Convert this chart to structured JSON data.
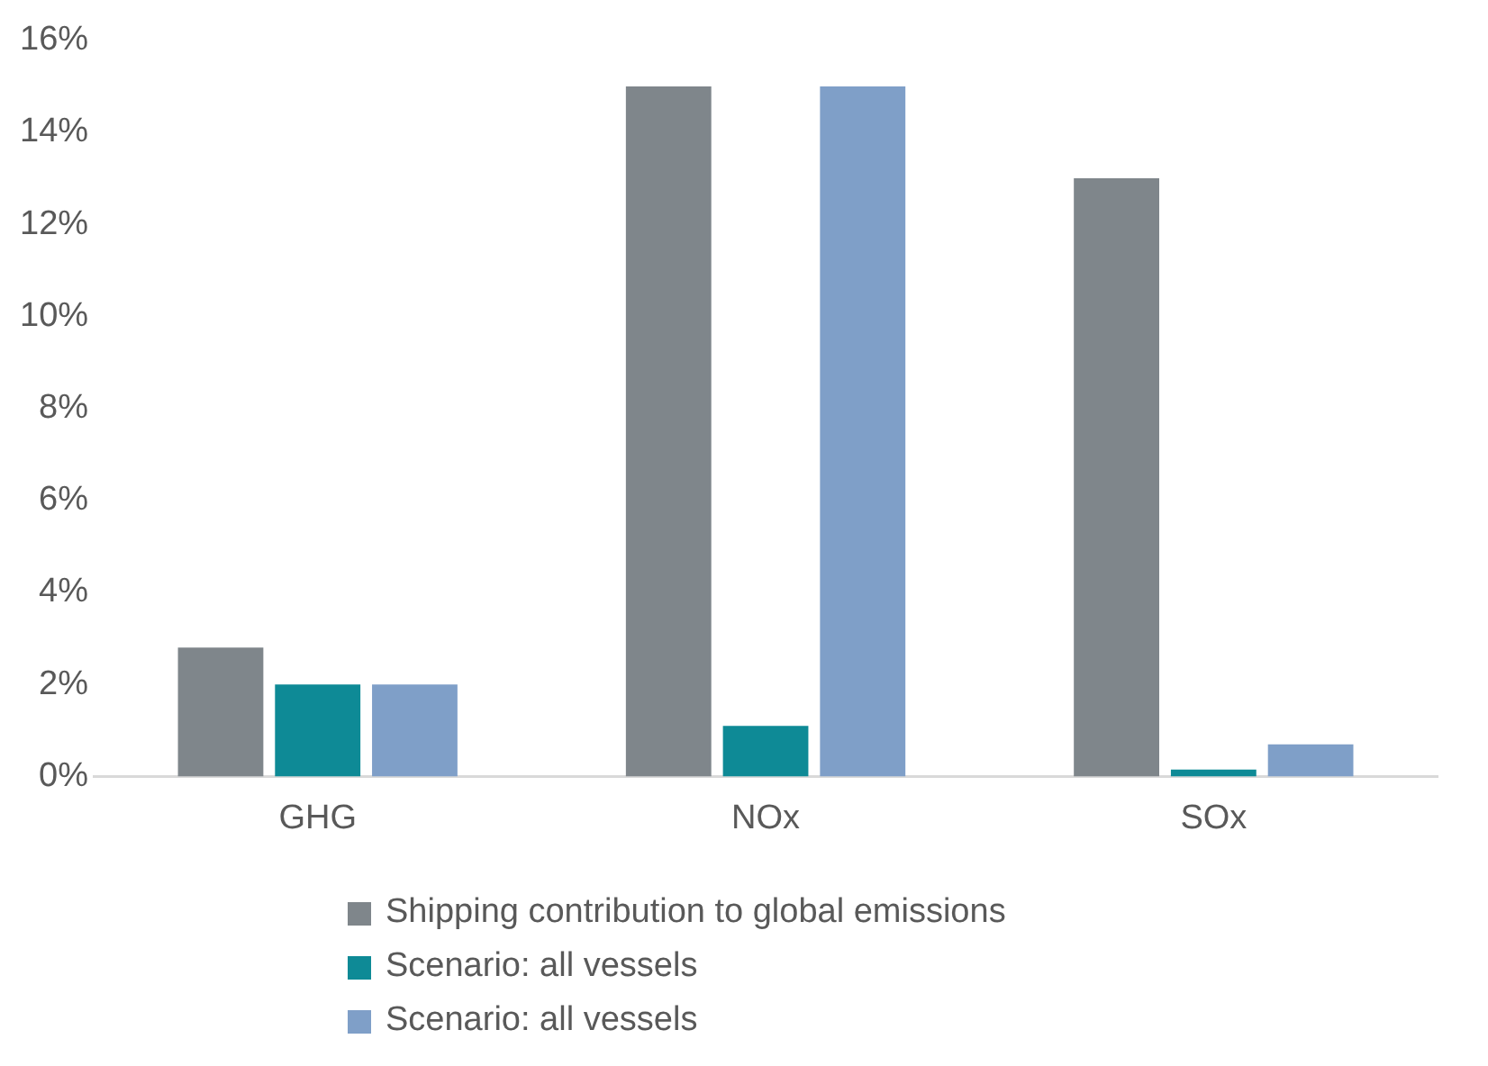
{
  "chart_data": {
    "type": "bar",
    "categories": [
      "GHG",
      "NOx",
      "SOx"
    ],
    "series": [
      {
        "name": "Shipping contribution to global emissions",
        "color": "#7f868b",
        "values": [
          2.8,
          15,
          13
        ]
      },
      {
        "name": "Scenario: all vessels",
        "color": "#0e8a96",
        "values": [
          2.0,
          1.1,
          0.15
        ]
      },
      {
        "name": "Scenario: all vessels",
        "color": "#7f9fc8",
        "values": [
          2.0,
          15,
          0.7
        ]
      }
    ],
    "ylim": [
      0,
      16
    ],
    "yticks": [
      {
        "value": 0,
        "label": "0%"
      },
      {
        "value": 2,
        "label": "2%"
      },
      {
        "value": 4,
        "label": "4%"
      },
      {
        "value": 6,
        "label": "6%"
      },
      {
        "value": 8,
        "label": "8%"
      },
      {
        "value": 10,
        "label": "10%"
      },
      {
        "value": 12,
        "label": "12%"
      },
      {
        "value": 14,
        "label": "14%"
      },
      {
        "value": 16,
        "label": "16%"
      }
    ],
    "grid": false,
    "legend": "bottom"
  }
}
